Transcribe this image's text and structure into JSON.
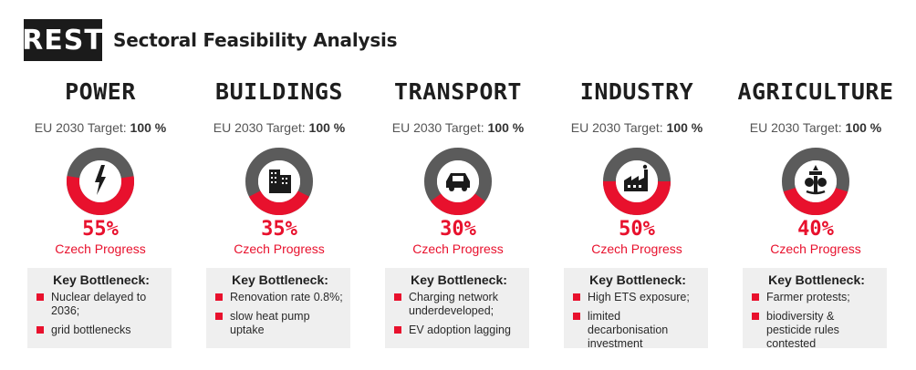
{
  "header": {
    "logo_text": "REST",
    "title": "Sectoral Feasibility Analysis"
  },
  "colors": {
    "accent_red": "#e8112d",
    "donut_grey": "#5b5b5b",
    "box_bg": "#efefef"
  },
  "target_prefix": "EU 2030 Target:",
  "progress_label": "Czech Progress",
  "bottleneck_title": "Key Bottleneck:",
  "sectors": [
    {
      "name": "POWER",
      "target": "100 %",
      "progress_pct": 55,
      "progress_text": "55%",
      "icon": "lightning-icon",
      "bottlenecks": [
        "Nuclear delayed to 2036;",
        "grid bottlenecks"
      ]
    },
    {
      "name": "BUILDINGS",
      "target": "100 %",
      "progress_pct": 35,
      "progress_text": "35%",
      "icon": "building-icon",
      "bottlenecks": [
        "Renovation rate 0.8%;",
        "slow heat pump uptake"
      ]
    },
    {
      "name": "TRANSPORT",
      "target": "100 %",
      "progress_pct": 30,
      "progress_text": "30%",
      "icon": "car-icon",
      "bottlenecks": [
        "Charging network underdeveloped;",
        "EV adoption lagging"
      ]
    },
    {
      "name": "INDUSTRY",
      "target": "100 %",
      "progress_pct": 50,
      "progress_text": "50%",
      "icon": "factory-icon",
      "bottlenecks": [
        "High ETS exposure;",
        "limited decarbonisation investment"
      ]
    },
    {
      "name": "AGRICULTURE",
      "target": "100 %",
      "progress_pct": 40,
      "progress_text": "40%",
      "icon": "tractor-icon",
      "bottlenecks": [
        "Farmer protests;",
        "biodiversity & pesticide rules contested"
      ]
    }
  ]
}
